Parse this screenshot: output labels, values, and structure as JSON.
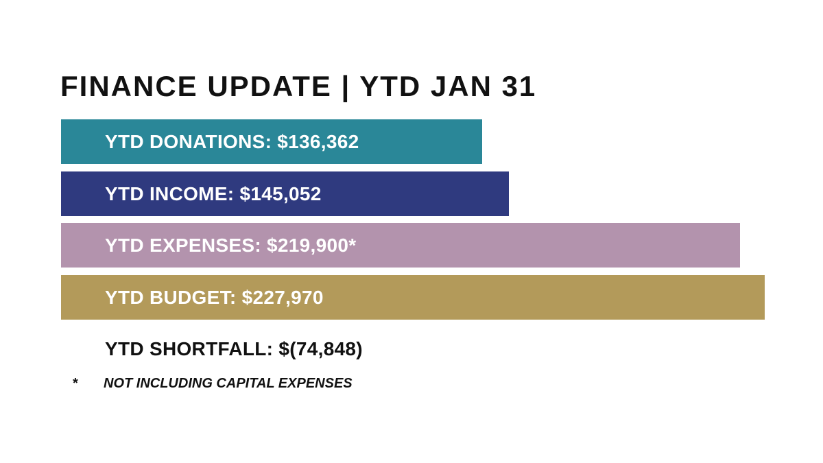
{
  "title": "FINANCE UPDATE | YTD JAN 31",
  "chart_data": {
    "type": "bar",
    "orientation": "horizontal",
    "categories": [
      "YTD DONATIONS",
      "YTD INCOME",
      "YTD EXPENSES",
      "YTD BUDGET"
    ],
    "values": [
      136362,
      145052,
      219900,
      227970
    ],
    "labels": [
      "YTD DONATIONS: $136,362",
      "YTD INCOME: $145,052",
      "YTD EXPENSES: $219,900*",
      "YTD BUDGET: $227,970"
    ],
    "colors": [
      "#2a8798",
      "#2f3a7f",
      "#b393ad",
      "#b39a5a"
    ],
    "xlim": [
      0,
      227970
    ]
  },
  "shortfall": "YTD SHORTFALL: $(74,848)",
  "footnote": {
    "marker": "*",
    "text": "NOT INCLUDING CAPITAL EXPENSES"
  }
}
